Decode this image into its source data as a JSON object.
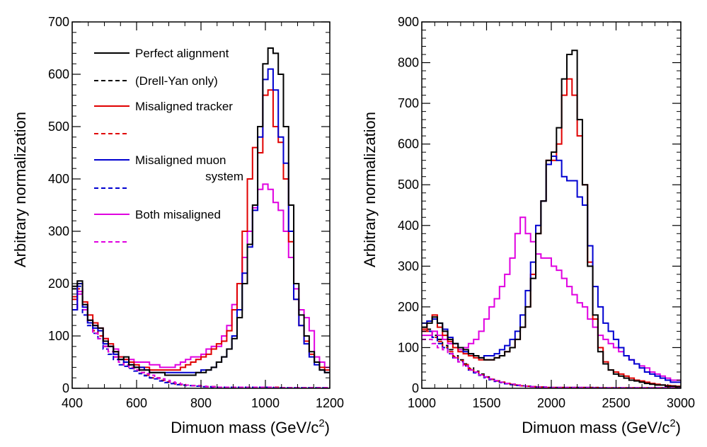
{
  "chart_data": [
    {
      "type": "line",
      "xlabel": "Dimuon mass (GeV/c",
      "xlabel_sup": "2",
      "xlabel_close": ")",
      "ylabel": "Arbitrary normalization",
      "xlim": [
        400,
        1200
      ],
      "ylim": [
        0,
        700
      ],
      "xticks": [
        400,
        600,
        800,
        1000,
        1200
      ],
      "yticks": [
        0,
        100,
        200,
        300,
        400,
        500,
        600,
        700
      ],
      "legend_position": "top-left",
      "legend": [
        {
          "label": "Perfect alignment",
          "color": "#000000",
          "dash": "solid"
        },
        {
          "label": "(Drell-Yan only)",
          "color": "#000000",
          "dash": "dashed"
        },
        {
          "label": "Misaligned tracker",
          "color": "#e00000",
          "dash": "solid"
        },
        {
          "label": "",
          "color": "#e00000",
          "dash": "dashed"
        },
        {
          "label": "Misaligned muon",
          "label2": "system",
          "color": "#0000d0",
          "dash": "solid"
        },
        {
          "label": "",
          "color": "#0000d0",
          "dash": "dashed"
        },
        {
          "label": "Both misaligned",
          "color": "#e000e0",
          "dash": "solid"
        },
        {
          "label": "",
          "color": "#e000e0",
          "dash": "dashed"
        }
      ],
      "bin_start": 400,
      "bin_width": 16,
      "series": [
        {
          "name": "Perfect alignment",
          "color": "#000000",
          "dash": "solid",
          "values": [
            195,
            205,
            160,
            130,
            120,
            115,
            90,
            80,
            70,
            55,
            60,
            45,
            40,
            35,
            35,
            30,
            30,
            30,
            25,
            25,
            25,
            25,
            25,
            25,
            30,
            30,
            35,
            40,
            50,
            60,
            75,
            95,
            135,
            200,
            275,
            350,
            500,
            620,
            650,
            640,
            600,
            500,
            350,
            200,
            140,
            100,
            70,
            50,
            35,
            30
          ]
        },
        {
          "name": "",
          "color": "#000000",
          "dash": "dashed",
          "values": [
            190,
            200,
            150,
            130,
            110,
            100,
            80,
            70,
            60,
            50,
            45,
            40,
            35,
            30,
            25,
            20,
            20,
            15,
            12,
            10,
            8,
            7,
            6,
            5,
            5,
            4,
            3,
            3,
            2,
            2,
            2,
            2,
            2,
            2,
            2,
            2,
            2,
            2,
            2,
            2,
            1,
            1,
            1,
            1,
            1,
            1,
            1,
            1,
            1,
            1
          ]
        },
        {
          "name": "Misaligned tracker",
          "color": "#e00000",
          "dash": "solid",
          "values": [
            175,
            200,
            165,
            140,
            125,
            115,
            95,
            85,
            70,
            60,
            55,
            50,
            45,
            40,
            40,
            35,
            35,
            35,
            35,
            35,
            35,
            40,
            45,
            50,
            55,
            60,
            65,
            75,
            85,
            90,
            110,
            150,
            200,
            300,
            400,
            460,
            450,
            560,
            570,
            500,
            470,
            400,
            280,
            170,
            120,
            90,
            65,
            50,
            40,
            35
          ]
        },
        {
          "name": "",
          "color": "#e00000",
          "dash": "dashed",
          "values": [
            170,
            190,
            150,
            125,
            110,
            100,
            80,
            70,
            60,
            50,
            45,
            40,
            35,
            30,
            25,
            20,
            20,
            15,
            12,
            10,
            8,
            7,
            6,
            5,
            5,
            4,
            3,
            3,
            2,
            2,
            2,
            2,
            2,
            2,
            2,
            2,
            2,
            2,
            2,
            2,
            1,
            1,
            1,
            1,
            1,
            1,
            1,
            1,
            1,
            1
          ]
        },
        {
          "name": "Misaligned muon system",
          "color": "#0000d0",
          "dash": "solid",
          "values": [
            150,
            200,
            155,
            125,
            115,
            110,
            85,
            80,
            65,
            55,
            50,
            45,
            40,
            40,
            35,
            30,
            30,
            30,
            30,
            30,
            30,
            30,
            30,
            30,
            30,
            35,
            35,
            40,
            50,
            60,
            75,
            100,
            150,
            220,
            270,
            340,
            480,
            590,
            610,
            570,
            480,
            430,
            300,
            170,
            120,
            85,
            60,
            45,
            35,
            30
          ]
        },
        {
          "name": "",
          "color": "#0000d0",
          "dash": "dashed",
          "values": [
            150,
            195,
            140,
            120,
            105,
            95,
            75,
            65,
            55,
            45,
            42,
            38,
            33,
            28,
            24,
            20,
            18,
            14,
            11,
            9,
            7,
            6,
            5,
            5,
            4,
            3,
            3,
            2,
            2,
            2,
            2,
            2,
            2,
            2,
            2,
            2,
            2,
            2,
            2,
            1,
            1,
            1,
            1,
            1,
            1,
            1,
            1,
            1,
            1,
            1
          ]
        },
        {
          "name": "Both misaligned",
          "color": "#e000e0",
          "dash": "solid",
          "values": [
            150,
            185,
            160,
            130,
            120,
            115,
            95,
            80,
            75,
            60,
            55,
            55,
            50,
            50,
            50,
            45,
            45,
            40,
            40,
            40,
            45,
            50,
            55,
            60,
            60,
            65,
            75,
            80,
            80,
            100,
            120,
            160,
            200,
            250,
            300,
            345,
            380,
            390,
            380,
            355,
            340,
            300,
            250,
            190,
            150,
            135,
            110,
            60,
            50,
            40
          ]
        },
        {
          "name": "",
          "color": "#e000e0",
          "dash": "dashed",
          "values": [
            150,
            180,
            150,
            125,
            105,
            95,
            80,
            70,
            60,
            50,
            45,
            40,
            35,
            30,
            28,
            25,
            20,
            18,
            15,
            12,
            10,
            8,
            6,
            5,
            5,
            4,
            3,
            3,
            2,
            2,
            2,
            2,
            2,
            2,
            2,
            2,
            2,
            2,
            2,
            1,
            1,
            1,
            1,
            1,
            1,
            1,
            1,
            1,
            1,
            1
          ]
        }
      ]
    },
    {
      "type": "line",
      "xlabel": "Dimuon mass (GeV/c",
      "xlabel_sup": "2",
      "xlabel_close": ")",
      "ylabel": "Arbitrary normalization",
      "xlim": [
        1000,
        3000
      ],
      "ylim": [
        0,
        900
      ],
      "xticks": [
        1000,
        1500,
        2000,
        2500,
        3000
      ],
      "yticks": [
        0,
        100,
        200,
        300,
        400,
        500,
        600,
        700,
        800,
        900
      ],
      "bin_start": 1000,
      "bin_width": 40,
      "series": [
        {
          "name": "Perfect alignment",
          "color": "#000000",
          "dash": "solid",
          "values": [
            150,
            160,
            175,
            160,
            140,
            120,
            110,
            100,
            95,
            85,
            80,
            75,
            70,
            70,
            75,
            80,
            90,
            100,
            120,
            150,
            200,
            270,
            380,
            460,
            560,
            580,
            640,
            760,
            820,
            830,
            660,
            500,
            300,
            180,
            90,
            60,
            45,
            35,
            30,
            25,
            20,
            18,
            15,
            12,
            10,
            8,
            8,
            5,
            5,
            4
          ]
        },
        {
          "name": "",
          "color": "#000000",
          "dash": "dashed",
          "values": [
            150,
            145,
            130,
            120,
            105,
            95,
            80,
            70,
            60,
            50,
            42,
            35,
            28,
            22,
            18,
            15,
            12,
            10,
            8,
            6,
            5,
            4,
            3,
            3,
            2,
            2,
            2,
            2,
            2,
            2,
            2,
            2,
            2,
            2,
            1,
            1,
            1,
            1,
            1,
            1,
            1,
            1,
            1,
            1,
            1,
            1,
            1,
            1,
            1,
            1
          ]
        },
        {
          "name": "Misaligned tracker",
          "color": "#e00000",
          "dash": "solid",
          "values": [
            140,
            165,
            180,
            150,
            130,
            115,
            100,
            90,
            85,
            80,
            75,
            70,
            70,
            70,
            75,
            80,
            90,
            100,
            120,
            150,
            200,
            280,
            380,
            460,
            560,
            560,
            600,
            720,
            760,
            720,
            620,
            500,
            310,
            170,
            100,
            65,
            45,
            40,
            35,
            30,
            25,
            20,
            18,
            15,
            12,
            10,
            8,
            7,
            6,
            5
          ]
        },
        {
          "name": "",
          "color": "#e00000",
          "dash": "dashed",
          "values": [
            145,
            140,
            125,
            115,
            100,
            90,
            78,
            68,
            58,
            48,
            40,
            33,
            27,
            22,
            18,
            15,
            12,
            10,
            8,
            6,
            5,
            4,
            3,
            3,
            2,
            2,
            2,
            2,
            2,
            2,
            2,
            2,
            2,
            2,
            1,
            1,
            1,
            1,
            1,
            1,
            1,
            1,
            1,
            1,
            1,
            1,
            1,
            1,
            1,
            1
          ]
        },
        {
          "name": "Misaligned muon system",
          "color": "#0000d0",
          "dash": "solid",
          "values": [
            160,
            165,
            170,
            160,
            145,
            125,
            110,
            100,
            90,
            85,
            80,
            75,
            80,
            80,
            85,
            95,
            105,
            120,
            140,
            180,
            240,
            310,
            400,
            460,
            550,
            570,
            560,
            520,
            510,
            510,
            470,
            450,
            350,
            250,
            200,
            160,
            140,
            120,
            100,
            80,
            70,
            60,
            50,
            40,
            35,
            30,
            25,
            20,
            15,
            15
          ]
        },
        {
          "name": "",
          "color": "#0000d0",
          "dash": "dashed",
          "values": [
            140,
            140,
            125,
            110,
            100,
            85,
            75,
            65,
            55,
            45,
            38,
            32,
            26,
            21,
            17,
            14,
            11,
            9,
            7,
            6,
            5,
            4,
            3,
            3,
            2,
            2,
            2,
            2,
            2,
            2,
            2,
            2,
            2,
            1,
            1,
            1,
            1,
            1,
            1,
            1,
            1,
            1,
            1,
            1,
            1,
            1,
            1,
            1,
            1,
            1
          ]
        },
        {
          "name": "Both misaligned",
          "color": "#e000e0",
          "dash": "solid",
          "values": [
            130,
            130,
            140,
            130,
            120,
            110,
            100,
            95,
            100,
            110,
            120,
            140,
            170,
            200,
            220,
            250,
            280,
            320,
            380,
            420,
            380,
            360,
            330,
            320,
            320,
            300,
            290,
            270,
            250,
            230,
            210,
            200,
            170,
            150,
            130,
            120,
            110,
            100,
            90,
            80,
            70,
            60,
            55,
            50,
            40,
            35,
            30,
            25,
            20,
            20
          ]
        },
        {
          "name": "",
          "color": "#e000e0",
          "dash": "dashed",
          "values": [
            120,
            120,
            110,
            100,
            95,
            85,
            75,
            65,
            55,
            45,
            40,
            33,
            28,
            23,
            19,
            15,
            12,
            10,
            8,
            6,
            5,
            4,
            3,
            3,
            2,
            2,
            2,
            2,
            2,
            2,
            2,
            2,
            2,
            1,
            1,
            1,
            1,
            1,
            1,
            1,
            1,
            1,
            1,
            1,
            1,
            1,
            1,
            1,
            1,
            1
          ]
        }
      ]
    }
  ]
}
